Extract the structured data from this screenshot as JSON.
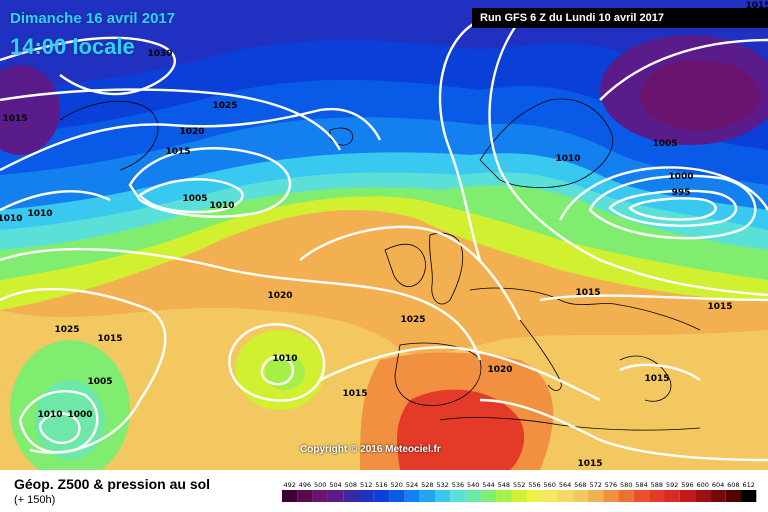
{
  "header": {
    "date_line": "Dimanche 16 avril 2017",
    "time_line": "14:00 locale",
    "run_info": "Run GFS 6 Z du Lundi 10 avril 2017"
  },
  "copyright": "Copyright © 2016 Meteociel.fr",
  "footer": {
    "title": "Géop. Z500 & pression au sol",
    "subtitle": "(+ 150h)"
  },
  "legend": {
    "values": [
      "492",
      "496",
      "500",
      "504",
      "508",
      "512",
      "516",
      "520",
      "524",
      "528",
      "532",
      "536",
      "540",
      "544",
      "548",
      "552",
      "556",
      "560",
      "564",
      "568",
      "572",
      "576",
      "580",
      "584",
      "588",
      "592",
      "596",
      "600",
      "604",
      "608",
      "612"
    ],
    "colors": [
      "#3b0030",
      "#5a0a50",
      "#6a1470",
      "#5a1c8a",
      "#3a2aa0",
      "#2030c0",
      "#0a40d8",
      "#0a5ae8",
      "#1480f0",
      "#22a6f2",
      "#38c8f0",
      "#5ae0d8",
      "#6ee8a8",
      "#80ec70",
      "#a6ee48",
      "#d0f030",
      "#f0f040",
      "#f8e860",
      "#f8d868",
      "#f4c860",
      "#f2b050",
      "#f09040",
      "#ee7030",
      "#ea5028",
      "#e43a28",
      "#dc2a2a",
      "#c01a1a",
      "#a01010",
      "#7a0808",
      "#500404",
      "#000000"
    ]
  },
  "pressure_labels": [
    "1030",
    "1025",
    "1020",
    "1015",
    "1015",
    "1010",
    "1005",
    "1010",
    "1010",
    "1020",
    "1025",
    "1015",
    "1005",
    "1010",
    "1000",
    "1010",
    "1015",
    "1025",
    "1020",
    "1015",
    "1010",
    "1005",
    "1000",
    "995",
    "1015",
    "1015",
    "1015",
    "1015"
  ]
}
